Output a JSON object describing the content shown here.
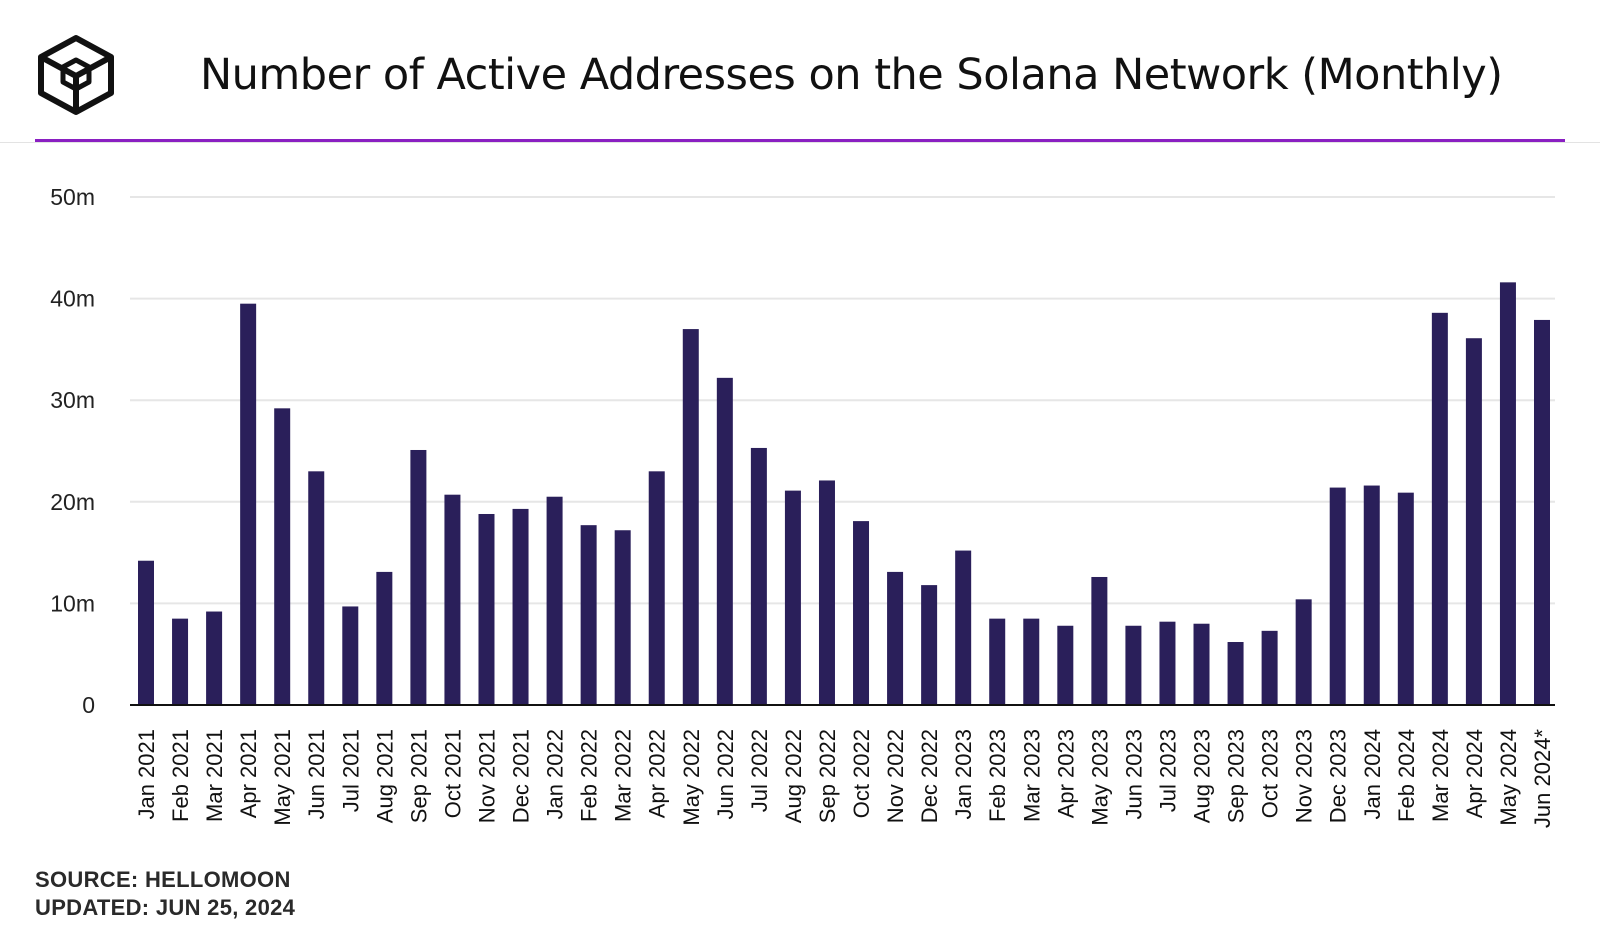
{
  "header": {
    "title": "Number of Active Addresses on the Solana Network (Monthly)"
  },
  "colors": {
    "bar": "#2a1f5a",
    "accent_line": "#8a1fc2",
    "grid": "#e6e6e6"
  },
  "icons": {
    "logo": "cube-logo-icon"
  },
  "footer": {
    "source": "SOURCE: HELLOMOON",
    "updated": "UPDATED: JUN 25, 2024"
  },
  "chart_data": {
    "type": "bar",
    "title": "Number of Active Addresses on the Solana Network (Monthly)",
    "xlabel": "",
    "ylabel": "",
    "ylim": [
      0,
      50
    ],
    "yticks": [
      "0",
      "10m",
      "20m",
      "30m",
      "40m",
      "50m"
    ],
    "grid": true,
    "categories": [
      "Jan 2021",
      "Feb 2021",
      "Mar 2021",
      "Apr 2021",
      "May 2021",
      "Jun 2021",
      "Jul 2021",
      "Aug 2021",
      "Sep 2021",
      "Oct 2021",
      "Nov 2021",
      "Dec 2021",
      "Jan 2022",
      "Feb 2022",
      "Mar 2022",
      "Apr 2022",
      "May 2022",
      "Jun 2022",
      "Jul 2022",
      "Aug 2022",
      "Sep 2022",
      "Oct 2022",
      "Nov 2022",
      "Dec 2022",
      "Jan 2023",
      "Feb 2023",
      "Mar 2023",
      "Apr 2023",
      "May 2023",
      "Jun 2023",
      "Jul 2023",
      "Aug 2023",
      "Sep 2023",
      "Oct 2023",
      "Nov 2023",
      "Dec 2023",
      "Jan 2024",
      "Feb 2024",
      "Mar 2024",
      "Apr 2024",
      "May 2024",
      "Jun 2024*"
    ],
    "values": [
      14.2,
      8.5,
      9.2,
      39.5,
      29.2,
      23.0,
      9.7,
      13.1,
      25.1,
      20.7,
      18.8,
      19.3,
      20.5,
      17.7,
      17.2,
      23.0,
      37.0,
      32.2,
      25.3,
      21.1,
      22.1,
      18.1,
      13.1,
      11.8,
      15.2,
      8.5,
      8.5,
      7.8,
      12.6,
      7.8,
      8.2,
      8.0,
      6.2,
      7.3,
      10.4,
      21.4,
      21.6,
      20.9,
      38.6,
      36.1,
      41.6,
      37.9
    ]
  }
}
